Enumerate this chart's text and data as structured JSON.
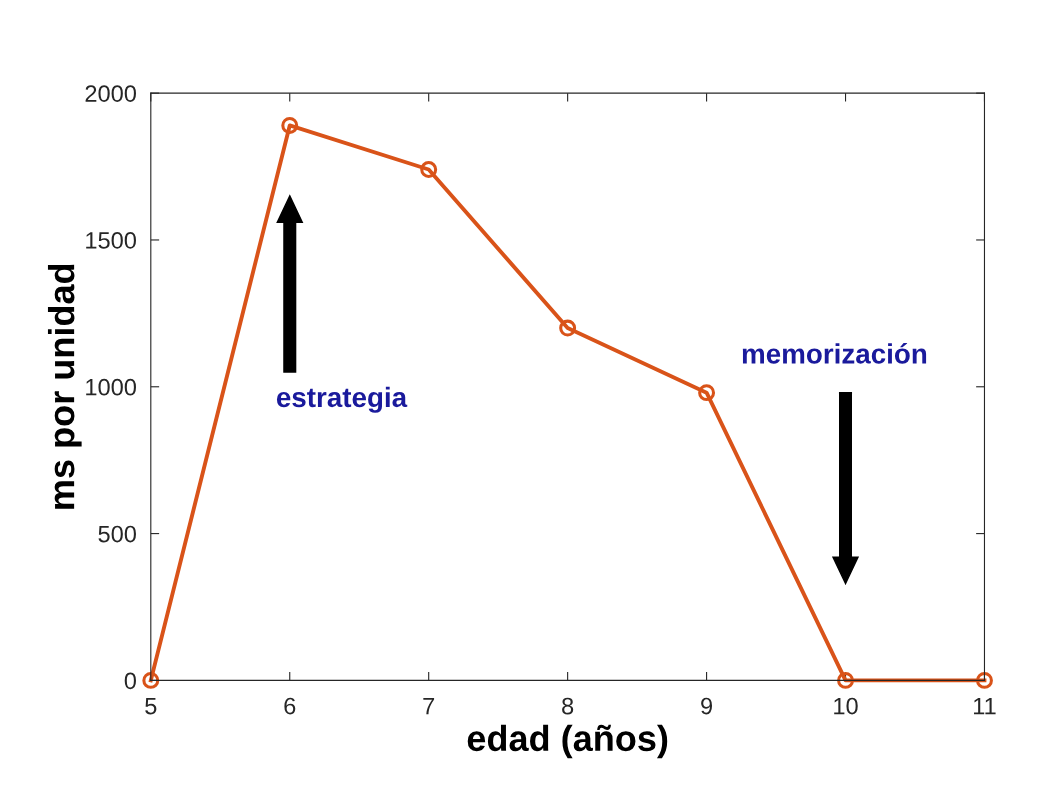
{
  "chart_data": {
    "type": "line",
    "xlabel": "edad (años)",
    "ylabel": "ms por unidad",
    "x": [
      5,
      6,
      7,
      8,
      9,
      10,
      11
    ],
    "series": [
      {
        "color": "#d95319",
        "values": [
          0,
          1890,
          1740,
          1200,
          980,
          0,
          0
        ]
      }
    ],
    "xlim": [
      5,
      11
    ],
    "xticks": [
      5,
      6,
      7,
      8,
      9,
      10,
      11
    ],
    "ylim": [
      0,
      2000
    ],
    "yticks": [
      0,
      500,
      1000,
      1500,
      2000
    ],
    "marker": "circle",
    "line_style": "solid",
    "grid": false,
    "legend": false,
    "annotations": [
      "estrategia",
      "memorización"
    ]
  }
}
